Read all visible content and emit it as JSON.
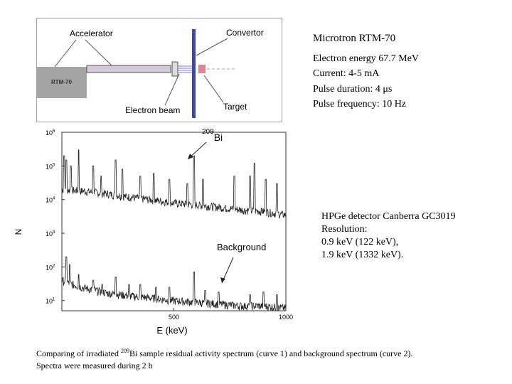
{
  "diagram": {
    "accelerator_label": "Accelerator",
    "convertor_label": "Convertor",
    "rtm_box_label": "RTM-70",
    "electron_beam_label": "Electron beam",
    "target_label": "Target"
  },
  "microtron": {
    "title": "Microtron RTM-70",
    "lines": [
      "Electron energy 67.7 MeV",
      "Current: 4-5 mA",
      "Pulse duration: 4 μs",
      "Pulse frequency: 10 Hz"
    ]
  },
  "detector": {
    "lines": [
      "HPGe detector Canberra GC3019",
      "Resolution:",
      "0.9 keV (122 keV),",
      "1.9 keV (1332 keV)."
    ]
  },
  "caption": {
    "part1": "Comparing of irradiated ",
    "isotope_mass": "209",
    "part2": "Bi sample residual activity spectrum (curve 1) and background spectrum (curve 2).",
    "line2": "Spectra were measured during 2 h"
  },
  "colors": {
    "frame_border": "#9aa3ad",
    "rtm_box_fill": "#a4a4a4",
    "tube_fill": "#d4cbd8",
    "convertor_fill": "#3d4a9c",
    "target_fill": "#e5828f",
    "beam_color": "#6f7fd0",
    "spectrum_line": "#202020"
  },
  "chart_data": {
    "type": "line",
    "title": "",
    "xlabel": "E (keV)",
    "ylabel": "N",
    "xlim": [
      0,
      1000
    ],
    "ylim": [
      5,
      1000000
    ],
    "y_scale": "log",
    "x_ticks": [
      500,
      1000
    ],
    "x_tick_labels": [
      "500",
      "1000"
    ],
    "y_ticks": [
      10,
      100,
      1000,
      10000,
      100000,
      1000000
    ],
    "y_tick_base": "10",
    "y_tick_exponents": [
      "1",
      "2",
      "3",
      "4",
      "5",
      "6"
    ],
    "grid": false,
    "series": [
      {
        "name": "209Bi",
        "baseline": [
          [
            0,
            20000
          ],
          [
            100,
            18000
          ],
          [
            200,
            15000
          ],
          [
            300,
            12000
          ],
          [
            400,
            10000
          ],
          [
            500,
            8000
          ],
          [
            600,
            7000
          ],
          [
            700,
            6000
          ],
          [
            800,
            5000
          ],
          [
            900,
            4500
          ],
          [
            1000,
            3500
          ]
        ],
        "peaks": [
          [
            10,
            200000
          ],
          [
            20,
            150000
          ],
          [
            40,
            100000
          ],
          [
            75,
            300000
          ],
          [
            140,
            100000
          ],
          [
            175,
            50000
          ],
          [
            240,
            150000
          ],
          [
            270,
            80000
          ],
          [
            350,
            50000
          ],
          [
            410,
            60000
          ],
          [
            480,
            40000
          ],
          [
            560,
            30000
          ],
          [
            590,
            200000
          ],
          [
            630,
            40000
          ],
          [
            770,
            50000
          ],
          [
            840,
            50000
          ],
          [
            860,
            120000
          ],
          [
            910,
            40000
          ],
          [
            960,
            30000
          ]
        ]
      },
      {
        "name": "Background",
        "baseline": [
          [
            0,
            40
          ],
          [
            50,
            30
          ],
          [
            100,
            24
          ],
          [
            200,
            17
          ],
          [
            300,
            14
          ],
          [
            400,
            12
          ],
          [
            500,
            10
          ],
          [
            600,
            9
          ],
          [
            700,
            8
          ],
          [
            800,
            7
          ],
          [
            900,
            7
          ],
          [
            1000,
            6
          ]
        ],
        "peaks": [
          [
            20,
            200
          ],
          [
            35,
            120
          ],
          [
            75,
            60
          ],
          [
            140,
            40
          ],
          [
            180,
            30
          ],
          [
            240,
            50
          ],
          [
            300,
            30
          ],
          [
            350,
            30
          ],
          [
            420,
            25
          ],
          [
            480,
            25
          ],
          [
            590,
            70
          ],
          [
            640,
            20
          ],
          [
            700,
            18
          ],
          [
            840,
            15
          ],
          [
            900,
            18
          ],
          [
            960,
            15
          ]
        ]
      }
    ]
  }
}
